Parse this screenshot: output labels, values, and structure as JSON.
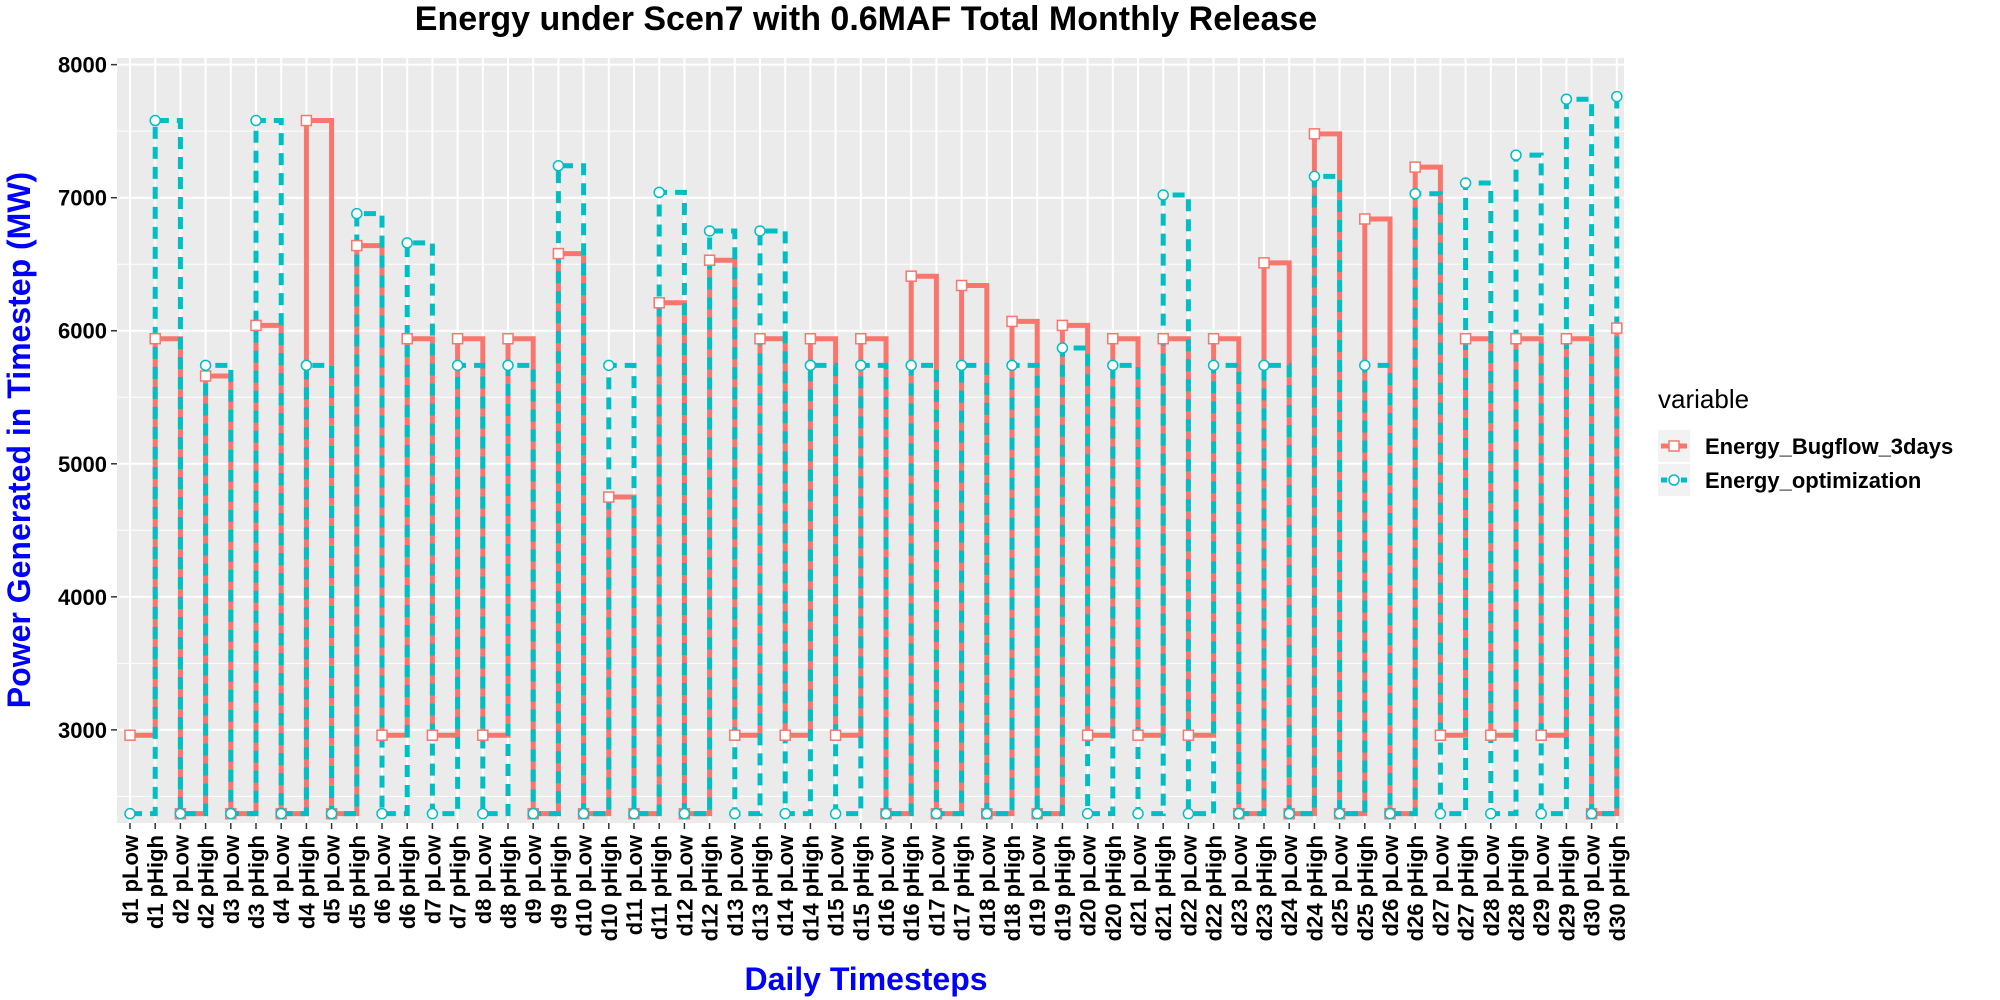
{
  "chart_data": {
    "type": "line",
    "step": true,
    "title": "Energy under Scen7 with 0.6MAF Total Monthly Release",
    "xlabel": "Daily Timesteps",
    "ylabel": "Power Generated in Timestep (MW)",
    "ylim": [
      2300,
      8050
    ],
    "yticks": [
      3000,
      4000,
      5000,
      6000,
      7000,
      8000
    ],
    "grid": true,
    "legend_position": "right",
    "legend_title": "variable",
    "axis_title_color": "#0000FF",
    "categories": [
      "d1 pLow",
      "d1 pHigh",
      "d2 pLow",
      "d2 pHigh",
      "d3 pLow",
      "d3 pHigh",
      "d4 pLow",
      "d4 pHigh",
      "d5 pLow",
      "d5 pHigh",
      "d6 pLow",
      "d6 pHigh",
      "d7 pLow",
      "d7 pHigh",
      "d8 pLow",
      "d8 pHigh",
      "d9 pLow",
      "d9 pHigh",
      "d10 pLow",
      "d10 pHigh",
      "d11 pLow",
      "d11 pHigh",
      "d12 pLow",
      "d12 pHigh",
      "d13 pLow",
      "d13 pHigh",
      "d14 pLow",
      "d14 pHigh",
      "d15 pLow",
      "d15 pHigh",
      "d16 pLow",
      "d16 pHigh",
      "d17 pLow",
      "d17 pHigh",
      "d18 pLow",
      "d18 pHigh",
      "d19 pLow",
      "d19 pHigh",
      "d20 pLow",
      "d20 pHigh",
      "d21 pLow",
      "d21 pHigh",
      "d22 pLow",
      "d22 pHigh",
      "d23 pLow",
      "d23 pHigh",
      "d24 pLow",
      "d24 pHigh",
      "d25 pLow",
      "d25 pHigh",
      "d26 pLow",
      "d26 pHigh",
      "d27 pLow",
      "d27 pHigh",
      "d28 pLow",
      "d28 pHigh",
      "d29 pLow",
      "d29 pHigh",
      "d30 pLow",
      "d30 pHigh"
    ],
    "series": [
      {
        "name": "Energy_Bugflow_3days",
        "color": "#F8766D",
        "marker": "square",
        "linestyle": "solid",
        "values": [
          2960,
          5940,
          2370,
          5660,
          2370,
          6040,
          2370,
          7580,
          2370,
          6640,
          2960,
          5940,
          2960,
          5940,
          2960,
          5940,
          2370,
          6580,
          2370,
          4750,
          2370,
          6210,
          2370,
          6530,
          2960,
          5940,
          2960,
          5940,
          2960,
          5940,
          2370,
          6410,
          2370,
          6340,
          2370,
          6070,
          2370,
          6040,
          2960,
          5940,
          2960,
          5940,
          2960,
          5940,
          2370,
          6510,
          2370,
          7480,
          2370,
          6840,
          2370,
          7230,
          2960,
          5940,
          2960,
          5940,
          2960,
          5940,
          2370,
          6020
        ]
      },
      {
        "name": "Energy_optimization",
        "color": "#00BFC4",
        "marker": "circle",
        "linestyle": "dashed",
        "values": [
          2370,
          7580,
          2370,
          5740,
          2370,
          7580,
          2370,
          5740,
          2370,
          6880,
          2370,
          6660,
          2370,
          5740,
          2370,
          5740,
          2370,
          7240,
          2370,
          5740,
          2370,
          7040,
          2370,
          6750,
          2370,
          6750,
          2370,
          5740,
          2370,
          5740,
          2370,
          5740,
          2370,
          5740,
          2370,
          5740,
          2370,
          5870,
          2370,
          5740,
          2370,
          7020,
          2370,
          5740,
          2370,
          5740,
          2370,
          7160,
          2370,
          5740,
          2370,
          7030,
          2370,
          7110,
          2370,
          7320,
          2370,
          7740,
          2370,
          7760
        ]
      }
    ]
  }
}
